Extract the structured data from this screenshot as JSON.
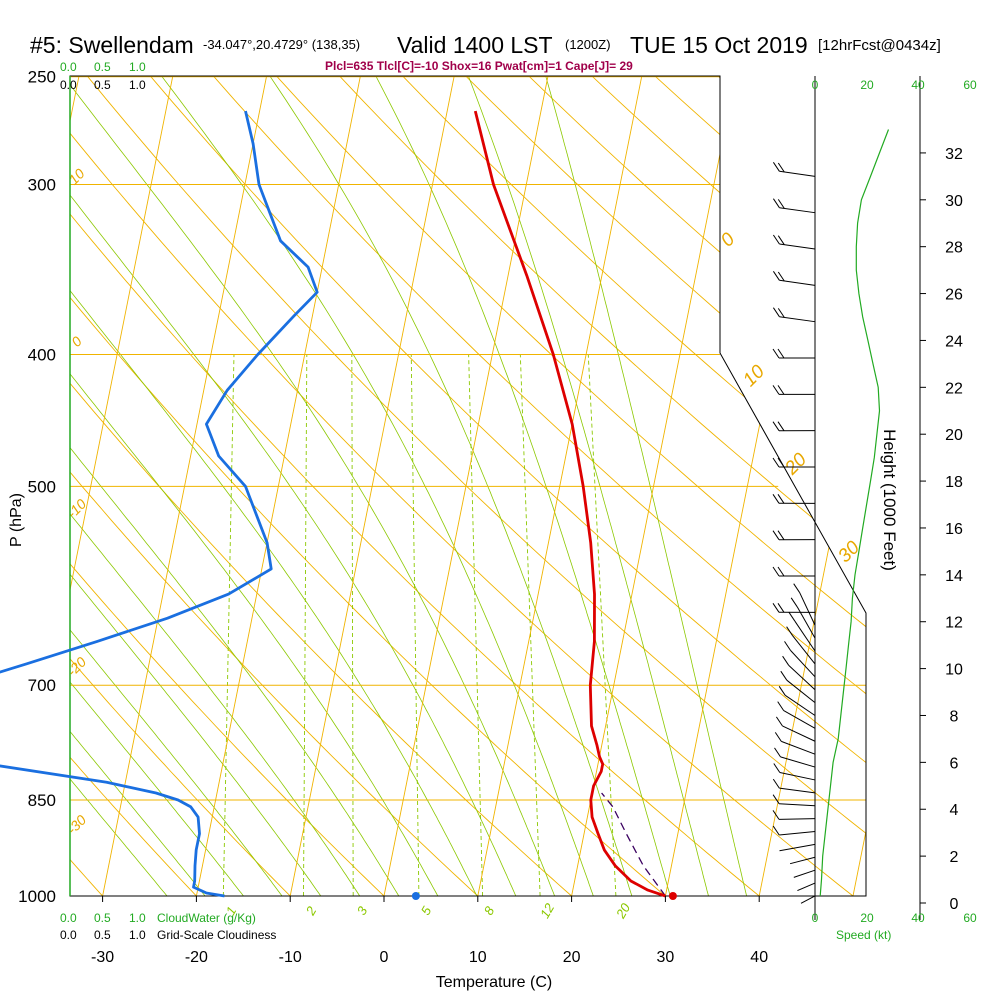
{
  "header": {
    "station": "#5: Swellendam",
    "coords": "-34.047°,20.4729° (138,35)",
    "valid": "Valid 1400 LST",
    "zulu": "(1200Z)",
    "date": "TUE 15 Oct 2019",
    "forecast": "[12hrFcst@0434z]",
    "params": "Plcl=635 Tlcl[C]=-10 Shox=16 Pwat[cm]=1 Cape[J]= 29"
  },
  "colors": {
    "isotherm": "#f0b400",
    "dry_adiabat": "#f0b400",
    "moist_adiabat": "#8cc800",
    "mixing_ratio": "#8cc800",
    "temperature": "#dd0000",
    "dewpoint": "#1a6fe0",
    "parcel": "#3a0060",
    "height": "#22aa22",
    "cloud": "#22aa22"
  },
  "chart_data": {
    "type": "skewt",
    "title": "#5: Swellendam Valid 1400 LST TUE 15 Oct 2019",
    "xlabel": "Temperature (C)",
    "ylabel": "P (hPa)",
    "right_label": "Height (1000 Feet)",
    "x_ticks": [
      "-30",
      "-20",
      "-10",
      "0",
      "10",
      "20",
      "30",
      "40"
    ],
    "x_tick_values": [
      -30,
      -20,
      -10,
      0,
      10,
      20,
      30,
      40
    ],
    "pressure_ticks": [
      "250",
      "300",
      "400",
      "500",
      "700",
      "850",
      "1000"
    ],
    "pressure_values": [
      250,
      300,
      400,
      500,
      700,
      850,
      1000
    ],
    "height_ticks": [
      "0",
      "2",
      "4",
      "6",
      "8",
      "10",
      "12",
      "14",
      "16",
      "18",
      "20",
      "22",
      "24",
      "26",
      "28",
      "30",
      "32"
    ],
    "height_values": [
      0,
      2,
      4,
      6,
      8,
      10,
      12,
      14,
      16,
      18,
      20,
      22,
      24,
      26,
      28,
      30,
      32
    ],
    "temperature_profile": {
      "pressure": [
        1000,
        990,
        975,
        950,
        925,
        900,
        875,
        850,
        830,
        810,
        800,
        790,
        775,
        750,
        725,
        700,
        650,
        600,
        550,
        500,
        450,
        400,
        350,
        300,
        265
      ],
      "temp": [
        30,
        28,
        26,
        24,
        22.5,
        21.5,
        20.5,
        20,
        20,
        20.5,
        20.5,
        20,
        19.5,
        18.5,
        18,
        17.5,
        17,
        16,
        14.5,
        12.5,
        10,
        6.5,
        2,
        -3.5,
        -7
      ]
    },
    "dewpoint_profile": {
      "pressure": [
        1000,
        995,
        985,
        975,
        950,
        925,
        900,
        875,
        860,
        850,
        840,
        825,
        800,
        775,
        750,
        725,
        700,
        675,
        650,
        625,
        600,
        575,
        550,
        500,
        475,
        450,
        425,
        400,
        375,
        360,
        345,
        330,
        300,
        280,
        265
      ],
      "temp": [
        -17,
        -19,
        -20.5,
        -20.5,
        -20.8,
        -21,
        -21,
        -21.5,
        -22.5,
        -24,
        -26.5,
        -32,
        -45,
        -55,
        -60,
        -58,
        -50,
        -43,
        -36,
        -29,
        -23,
        -19,
        -20,
        -23.5,
        -27,
        -29,
        -27.5,
        -25,
        -22,
        -20,
        -21.5,
        -25,
        -28.5,
        -30,
        -31.5
      ]
    },
    "parcel_profile": {
      "pressure": [
        1000,
        950,
        900,
        860,
        840
      ],
      "temp": [
        30,
        27,
        24.5,
        22.5,
        21
      ]
    },
    "surface_temperature_dot": 30.8,
    "surface_dewpoint_dot": 3.4,
    "dry_adiabat_labels": [
      "10",
      "0",
      "-10",
      "-20",
      "-30",
      "0",
      "10",
      "20",
      "30"
    ],
    "mixing_ratio_labels": [
      "1",
      "2",
      "3",
      "5",
      "8",
      "12",
      "20"
    ],
    "cloud_axis": {
      "top_green": [
        "0.0",
        "0.5",
        "1.0"
      ],
      "top_black": [
        "0.0",
        "0.5",
        "1.0"
      ],
      "bottom_green": [
        "0.0",
        "0.5",
        "1.0"
      ],
      "bottom_black": [
        "0.0",
        "0.5",
        "1.0"
      ],
      "cloud_water_label": "CloudWater (g/Kg)",
      "cloudiness_label": "Grid-Scale Cloudiness"
    },
    "speed_axis": {
      "ticks": [
        "0",
        "20",
        "40",
        "60"
      ],
      "label": "Speed (kt)"
    },
    "wind_speed_profile": {
      "height_kft": [
        0.3,
        1,
        2,
        3,
        4,
        5,
        6,
        7,
        8,
        9,
        10,
        11,
        12,
        13,
        14,
        15,
        16,
        17,
        18,
        19,
        20,
        21,
        22,
        23,
        24,
        25,
        26,
        27,
        28,
        29,
        30,
        31,
        32,
        33
      ],
      "speed_kt": [
        2,
        2.5,
        3,
        4,
        5,
        6,
        7,
        9,
        10,
        11,
        12,
        13,
        14,
        14.5,
        15.5,
        17,
        18.5,
        20,
        21.5,
        23,
        24,
        25,
        24.5,
        22.5,
        20.5,
        18.5,
        17,
        16,
        16,
        16.5,
        18,
        21.5,
        25,
        28.5
      ]
    }
  }
}
